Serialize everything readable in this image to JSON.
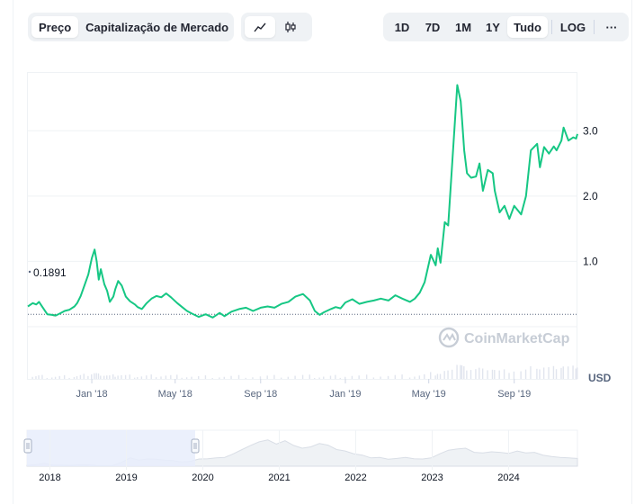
{
  "toolbar": {
    "tabs": [
      {
        "label": "Preço"
      },
      {
        "label": "Capitalização de Mercado"
      }
    ],
    "chart_types": [
      {
        "icon": "line-chart-icon"
      },
      {
        "icon": "candlestick-icon"
      }
    ],
    "ranges": [
      {
        "label": "1D"
      },
      {
        "label": "7D"
      },
      {
        "label": "1M"
      },
      {
        "label": "1Y"
      },
      {
        "label": "Tudo"
      }
    ],
    "log_label": "LOG",
    "more_label": "···"
  },
  "current_price_label": "0.1891",
  "watermark": "CoinMarketCap",
  "currency": "USD",
  "colors": {
    "up": "#16c784",
    "down": "#ea3943",
    "grid": "#eff2f5",
    "navigator_fill": "#e8edfb"
  },
  "chart_data": {
    "type": "line",
    "title": "",
    "x_tick_labels": [
      "Jan '18",
      "May '18",
      "Sep '18",
      "Jan '19",
      "May '19",
      "Sep '19"
    ],
    "x_ticks": [
      "2018-01-01",
      "2018-05-01",
      "2018-09-01",
      "2019-01-01",
      "2019-05-01",
      "2019-09-01"
    ],
    "xlim": [
      "2017-10-01",
      "2019-12-01"
    ],
    "ylim": [
      -0.8,
      3.9
    ],
    "y_ticks": [
      1.0,
      2.0,
      3.0
    ],
    "y_tick_labels": [
      "1.0",
      "2.0",
      "3.0"
    ],
    "baseline": 0.1891,
    "grid": true,
    "series": [
      {
        "x": [
          "2017-10-01",
          "2017-10-08",
          "2017-10-13",
          "2017-10-17",
          "2017-10-22",
          "2017-10-29",
          "2017-11-05",
          "2017-11-10",
          "2017-11-16",
          "2017-11-23",
          "2017-11-30",
          "2017-12-07",
          "2017-12-11",
          "2017-12-16",
          "2017-12-21",
          "2017-12-27",
          "2018-01-01",
          "2018-01-05",
          "2018-01-08",
          "2018-01-11",
          "2018-01-14",
          "2018-01-19",
          "2018-01-23",
          "2018-01-27",
          "2018-02-01",
          "2018-02-04",
          "2018-02-08",
          "2018-02-13",
          "2018-02-19",
          "2018-02-25",
          "2018-03-04",
          "2018-03-08",
          "2018-03-14",
          "2018-03-21",
          "2018-03-28",
          "2018-04-04",
          "2018-04-11",
          "2018-04-18",
          "2018-04-25",
          "2018-05-04",
          "2018-05-11",
          "2018-05-18",
          "2018-05-25",
          "2018-06-04",
          "2018-06-14",
          "2018-06-24",
          "2018-07-04",
          "2018-07-11",
          "2018-07-21",
          "2018-08-01",
          "2018-08-11",
          "2018-08-21",
          "2018-09-01",
          "2018-09-11",
          "2018-09-21",
          "2018-10-01",
          "2018-10-11",
          "2018-10-21",
          "2018-11-01",
          "2018-11-11",
          "2018-11-18",
          "2018-11-25",
          "2018-12-01",
          "2018-12-11",
          "2018-12-18",
          "2018-12-25",
          "2019-01-01",
          "2019-01-11",
          "2019-01-21",
          "2019-02-01",
          "2019-02-11",
          "2019-02-21",
          "2019-03-04",
          "2019-03-14",
          "2019-03-24",
          "2019-04-04",
          "2019-04-11",
          "2019-04-18",
          "2019-04-25",
          "2019-05-04",
          "2019-05-11",
          "2019-05-14",
          "2019-05-18",
          "2019-05-24",
          "2019-05-29",
          "2019-06-04",
          "2019-06-11",
          "2019-06-16",
          "2019-06-18",
          "2019-06-21",
          "2019-06-25",
          "2019-07-01",
          "2019-07-08",
          "2019-07-13",
          "2019-07-18",
          "2019-07-25",
          "2019-08-01",
          "2019-08-04",
          "2019-08-11",
          "2019-08-18",
          "2019-08-25",
          "2019-09-01",
          "2019-09-11",
          "2019-09-18",
          "2019-09-25",
          "2019-10-04",
          "2019-10-08",
          "2019-10-14",
          "2019-10-21",
          "2019-10-28",
          "2019-11-01",
          "2019-11-08",
          "2019-11-11",
          "2019-11-18",
          "2019-11-25",
          "2019-11-29",
          "2019-12-01"
        ],
        "y": [
          0.31,
          0.36,
          0.34,
          0.38,
          0.3,
          0.19,
          0.18,
          0.17,
          0.2,
          0.24,
          0.26,
          0.31,
          0.36,
          0.47,
          0.62,
          0.8,
          1.05,
          1.18,
          1.0,
          0.72,
          0.88,
          0.65,
          0.55,
          0.38,
          0.46,
          0.58,
          0.7,
          0.63,
          0.46,
          0.39,
          0.34,
          0.3,
          0.27,
          0.36,
          0.43,
          0.47,
          0.45,
          0.51,
          0.45,
          0.36,
          0.3,
          0.24,
          0.2,
          0.15,
          0.19,
          0.14,
          0.21,
          0.16,
          0.23,
          0.27,
          0.29,
          0.24,
          0.29,
          0.31,
          0.29,
          0.35,
          0.38,
          0.46,
          0.5,
          0.4,
          0.24,
          0.18,
          0.22,
          0.27,
          0.3,
          0.28,
          0.37,
          0.42,
          0.35,
          0.38,
          0.4,
          0.43,
          0.4,
          0.48,
          0.43,
          0.38,
          0.43,
          0.52,
          0.68,
          1.1,
          0.94,
          1.2,
          0.98,
          1.6,
          1.55,
          2.55,
          3.7,
          3.45,
          3.15,
          2.7,
          2.35,
          2.28,
          2.3,
          2.5,
          2.08,
          2.4,
          2.35,
          2.08,
          1.75,
          1.85,
          1.65,
          1.85,
          1.72,
          2.0,
          2.7,
          2.8,
          2.44,
          2.75,
          2.65,
          2.76,
          2.7,
          2.85,
          3.05,
          2.85,
          2.9,
          2.88,
          2.95
        ]
      }
    ],
    "navigator": {
      "tick_labels": [
        "2018",
        "2019",
        "2020",
        "2021",
        "2022",
        "2023",
        "2024"
      ],
      "ticks": [
        2018,
        2019,
        2020,
        2021,
        2022,
        2023,
        2024
      ],
      "xlim": [
        2017.7,
        2024.9
      ],
      "selection": [
        2017.7,
        2019.9
      ],
      "y": [
        0.3,
        0.6,
        1.0,
        0.4,
        0.35,
        0.3,
        0.45,
        0.5,
        0.3,
        0.25,
        0.3,
        1.4,
        3.0,
        2.2,
        2.6,
        2.5,
        2.2,
        2.0,
        1.5,
        1.8,
        2.6,
        2.7,
        3.0,
        3.2,
        4.5,
        6.0,
        7.5,
        8.8,
        9.5,
        8.0,
        9.2,
        7.5,
        6.5,
        7.0,
        8.2,
        7.6,
        6.0,
        5.5,
        4.5,
        4.0,
        3.0,
        3.2,
        2.5,
        2.8,
        3.2,
        2.7,
        2.6,
        3.0,
        4.5,
        5.8,
        6.2,
        6.5,
        5.0,
        4.8,
        5.2,
        5.0,
        4.6,
        5.5,
        4.8,
        5.0,
        4.0,
        3.5,
        3.2,
        3.0,
        2.8
      ],
      "ymax": 13
    }
  }
}
